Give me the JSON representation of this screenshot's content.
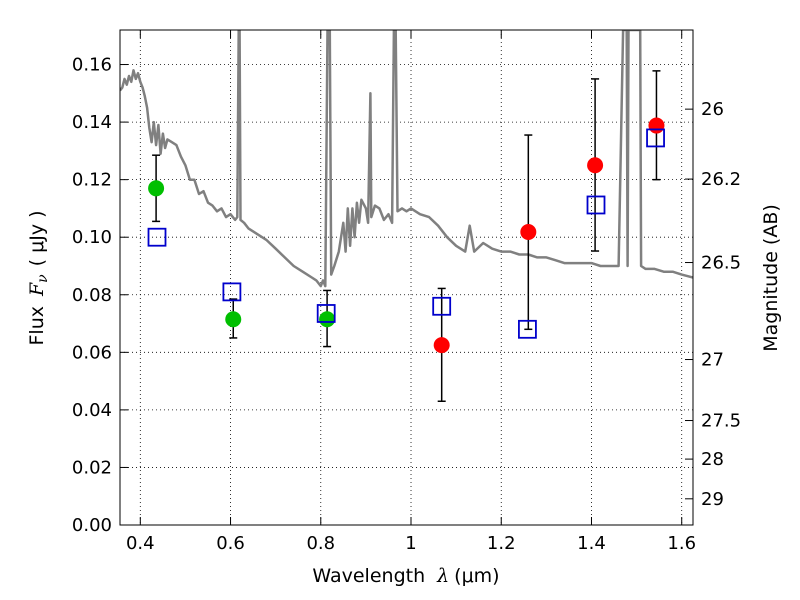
{
  "chart_data": {
    "type": "scatter",
    "xlabel_prefix": "Wavelength",
    "xlabel_symbol": "λ",
    "xlabel_unit": "(μm)",
    "ylabel_prefix": "Flux",
    "ylabel_symbol": "F",
    "ylabel_subscript": "ν",
    "ylabel_unit": "( μJy )",
    "y2label": "Magnitude (AB)",
    "xlim": [
      0.355,
      1.625
    ],
    "ylim": [
      0.0,
      0.172
    ],
    "grid": true,
    "x_ticks": [
      0.4,
      0.6,
      0.8,
      1.0,
      1.2,
      1.4,
      1.6
    ],
    "x_tick_labels": [
      "0.4",
      "0.6",
      "0.8",
      "1",
      "1.2",
      "1.4",
      "1.6"
    ],
    "y_ticks": [
      0.0,
      0.02,
      0.04,
      0.06,
      0.08,
      0.1,
      0.12,
      0.14,
      0.16
    ],
    "y_tick_labels": [
      "0.00",
      "0.02",
      "0.04",
      "0.06",
      "0.08",
      "0.10",
      "0.12",
      "0.14",
      "0.16"
    ],
    "y2_ticks": [
      {
        "label": "26",
        "flux": 0.1445
      },
      {
        "label": "26.2",
        "flux": 0.1202
      },
      {
        "label": "26.5",
        "flux": 0.0912
      },
      {
        "label": "27",
        "flux": 0.0575
      },
      {
        "label": "27.5",
        "flux": 0.0363
      },
      {
        "label": "28",
        "flux": 0.0229
      },
      {
        "label": "29",
        "flux": 0.0091
      }
    ],
    "observed_green": [
      {
        "x": 0.435,
        "y": 0.117,
        "err_low": 0.1055,
        "err_high": 0.1285
      },
      {
        "x": 0.606,
        "y": 0.0715,
        "err_low": 0.065,
        "err_high": 0.0785
      },
      {
        "x": 0.814,
        "y": 0.0715,
        "err_low": 0.062,
        "err_high": 0.0815
      }
    ],
    "observed_red": [
      {
        "x": 1.068,
        "y": 0.0625,
        "err_low": 0.043,
        "err_high": 0.0822
      },
      {
        "x": 1.26,
        "y": 0.1018,
        "err_low": 0.068,
        "err_high": 0.1355
      },
      {
        "x": 1.408,
        "y": 0.125,
        "err_low": 0.0952,
        "err_high": 0.155
      },
      {
        "x": 1.544,
        "y": 0.1388,
        "err_low": 0.12,
        "err_high": 0.1578
      }
    ],
    "model_squares": [
      {
        "x": 0.437,
        "y": 0.1
      },
      {
        "x": 0.603,
        "y": 0.081
      },
      {
        "x": 0.812,
        "y": 0.0735
      },
      {
        "x": 1.068,
        "y": 0.076
      },
      {
        "x": 1.258,
        "y": 0.068
      },
      {
        "x": 1.41,
        "y": 0.1112
      },
      {
        "x": 1.542,
        "y": 0.1345
      }
    ],
    "template_sed": [
      [
        0.355,
        0.151
      ],
      [
        0.36,
        0.152
      ],
      [
        0.365,
        0.155
      ],
      [
        0.37,
        0.153
      ],
      [
        0.375,
        0.156
      ],
      [
        0.38,
        0.154
      ],
      [
        0.385,
        0.158
      ],
      [
        0.39,
        0.155
      ],
      [
        0.395,
        0.157
      ],
      [
        0.4,
        0.154
      ],
      [
        0.405,
        0.152
      ],
      [
        0.41,
        0.149
      ],
      [
        0.415,
        0.145
      ],
      [
        0.42,
        0.138
      ],
      [
        0.425,
        0.133
      ],
      [
        0.43,
        0.14
      ],
      [
        0.435,
        0.132
      ],
      [
        0.44,
        0.139
      ],
      [
        0.445,
        0.129
      ],
      [
        0.45,
        0.136
      ],
      [
        0.455,
        0.131
      ],
      [
        0.46,
        0.134
      ],
      [
        0.47,
        0.133
      ],
      [
        0.48,
        0.132
      ],
      [
        0.49,
        0.128
      ],
      [
        0.5,
        0.125
      ],
      [
        0.51,
        0.12
      ],
      [
        0.52,
        0.12
      ],
      [
        0.53,
        0.115
      ],
      [
        0.54,
        0.116
      ],
      [
        0.55,
        0.112
      ],
      [
        0.56,
        0.111
      ],
      [
        0.57,
        0.109
      ],
      [
        0.58,
        0.11
      ],
      [
        0.59,
        0.107
      ],
      [
        0.6,
        0.108
      ],
      [
        0.61,
        0.106
      ],
      [
        0.615,
        0.107
      ],
      [
        0.618,
        0.172
      ],
      [
        0.62,
        0.172
      ],
      [
        0.622,
        0.106
      ],
      [
        0.63,
        0.105
      ],
      [
        0.64,
        0.103
      ],
      [
        0.66,
        0.101
      ],
      [
        0.68,
        0.099
      ],
      [
        0.7,
        0.096
      ],
      [
        0.72,
        0.093
      ],
      [
        0.74,
        0.09
      ],
      [
        0.76,
        0.088
      ],
      [
        0.78,
        0.086
      ],
      [
        0.79,
        0.085
      ],
      [
        0.8,
        0.083
      ],
      [
        0.805,
        0.085
      ],
      [
        0.81,
        0.083
      ],
      [
        0.815,
        0.172
      ],
      [
        0.82,
        0.172
      ],
      [
        0.823,
        0.087
      ],
      [
        0.83,
        0.09
      ],
      [
        0.84,
        0.095
      ],
      [
        0.85,
        0.105
      ],
      [
        0.855,
        0.095
      ],
      [
        0.86,
        0.11
      ],
      [
        0.865,
        0.097
      ],
      [
        0.87,
        0.11
      ],
      [
        0.875,
        0.1
      ],
      [
        0.88,
        0.112
      ],
      [
        0.885,
        0.105
      ],
      [
        0.89,
        0.113
      ],
      [
        0.9,
        0.11
      ],
      [
        0.905,
        0.105
      ],
      [
        0.91,
        0.15
      ],
      [
        0.912,
        0.107
      ],
      [
        0.92,
        0.111
      ],
      [
        0.93,
        0.11
      ],
      [
        0.94,
        0.106
      ],
      [
        0.95,
        0.108
      ],
      [
        0.958,
        0.105
      ],
      [
        0.962,
        0.172
      ],
      [
        0.966,
        0.172
      ],
      [
        0.97,
        0.109
      ],
      [
        0.98,
        0.11
      ],
      [
        0.99,
        0.109
      ],
      [
        1.0,
        0.11
      ],
      [
        1.01,
        0.109
      ],
      [
        1.02,
        0.108
      ],
      [
        1.04,
        0.107
      ],
      [
        1.06,
        0.104
      ],
      [
        1.08,
        0.1
      ],
      [
        1.1,
        0.097
      ],
      [
        1.12,
        0.095
      ],
      [
        1.13,
        0.104
      ],
      [
        1.14,
        0.095
      ],
      [
        1.16,
        0.098
      ],
      [
        1.18,
        0.096
      ],
      [
        1.2,
        0.095
      ],
      [
        1.22,
        0.095
      ],
      [
        1.24,
        0.094
      ],
      [
        1.26,
        0.094
      ],
      [
        1.28,
        0.093
      ],
      [
        1.3,
        0.093
      ],
      [
        1.32,
        0.092
      ],
      [
        1.34,
        0.091
      ],
      [
        1.36,
        0.091
      ],
      [
        1.38,
        0.091
      ],
      [
        1.4,
        0.091
      ],
      [
        1.42,
        0.09
      ],
      [
        1.44,
        0.09
      ],
      [
        1.46,
        0.09
      ],
      [
        1.47,
        0.172
      ],
      [
        1.478,
        0.172
      ],
      [
        1.48,
        0.09
      ],
      [
        1.482,
        0.172
      ],
      [
        1.49,
        0.172
      ],
      [
        1.5,
        0.172
      ],
      [
        1.508,
        0.172
      ],
      [
        1.51,
        0.09
      ],
      [
        1.52,
        0.089
      ],
      [
        1.54,
        0.089
      ],
      [
        1.56,
        0.088
      ],
      [
        1.58,
        0.088
      ],
      [
        1.6,
        0.087
      ],
      [
        1.625,
        0.086
      ]
    ]
  }
}
